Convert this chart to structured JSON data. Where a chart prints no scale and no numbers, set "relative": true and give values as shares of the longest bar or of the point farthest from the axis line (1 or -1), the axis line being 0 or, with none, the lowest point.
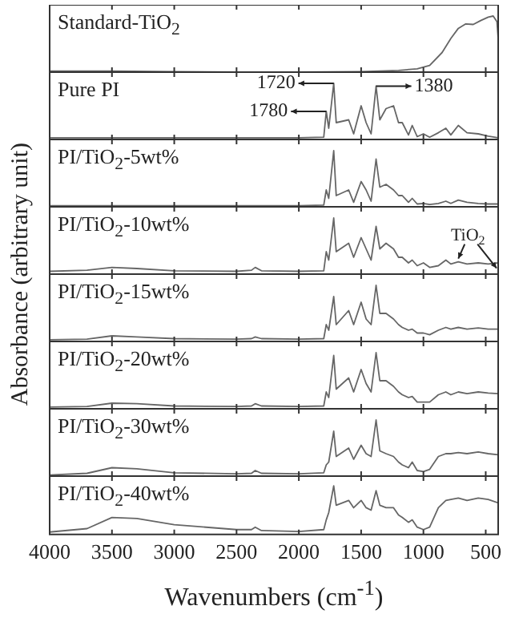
{
  "chart_data": [
    {
      "type": "line",
      "title": "Standard-TiO$_{2}$",
      "ylabel": "Absorbance (arbitrary unit)",
      "relative": true,
      "marker": "none",
      "grid": false,
      "legend": false,
      "tick_labels": false,
      "xlim": [
        4000,
        400
      ],
      "xticks": [
        4000,
        3500,
        3000,
        2500,
        2000,
        1500,
        1000,
        500
      ],
      "x": [
        4000,
        3500,
        3000,
        2500,
        2000,
        1500,
        1200,
        1050,
        950,
        850,
        780,
        720,
        660,
        600,
        540,
        480,
        440,
        410,
        400
      ],
      "series": [
        {
          "color": "#666666",
          "values": [
            0.02,
            0.02,
            0.01,
            0.0,
            0.0,
            0.01,
            0.03,
            0.06,
            0.12,
            0.35,
            0.6,
            0.78,
            0.86,
            0.85,
            0.92,
            0.98,
            1,
            0.9,
            0.6
          ]
        }
      ]
    },
    {
      "type": "line",
      "title": "Pure PI",
      "relative": true,
      "marker": "none",
      "grid": false,
      "legend": false,
      "tick_labels": false,
      "xlim": [
        4000,
        400
      ],
      "xticks": [
        4000,
        3500,
        3000,
        2500,
        2000,
        1500,
        1000,
        500
      ],
      "x": [
        4000,
        3700,
        3500,
        3300,
        3000,
        2500,
        2380,
        2350,
        2300,
        2000,
        1800,
        1780,
        1760,
        1720,
        1700,
        1600,
        1560,
        1500,
        1460,
        1420,
        1380,
        1350,
        1300,
        1240,
        1200,
        1170,
        1120,
        1090,
        1050,
        1000,
        950,
        880,
        820,
        780,
        720,
        650,
        560,
        480,
        400
      ],
      "series": [
        {
          "color": "#666666",
          "values": [
            0.03,
            0.03,
            0.03,
            0.03,
            0.03,
            0.03,
            0.03,
            0.03,
            0.03,
            0.03,
            0.04,
            0.5,
            0.2,
            1,
            0.3,
            0.35,
            0.1,
            0.6,
            0.3,
            0.1,
            0.95,
            0.35,
            0.55,
            0.6,
            0.3,
            0.3,
            0.08,
            0.25,
            0.05,
            0.1,
            0.04,
            0.12,
            0.2,
            0.08,
            0.25,
            0.12,
            0.1,
            0.06,
            0.03
          ]
        }
      ],
      "annotations": [
        {
          "text": "1720",
          "x": 1720,
          "y": 1
        },
        {
          "text": "1380",
          "x": 1380,
          "y": 0.95
        },
        {
          "text": "1780",
          "x": 1780,
          "y": 0.5
        }
      ]
    },
    {
      "type": "line",
      "title": "PI/TiO$_{2}$-5wt%",
      "relative": true,
      "marker": "none",
      "grid": false,
      "legend": false,
      "tick_labels": false,
      "xlim": [
        4000,
        400
      ],
      "xticks": [
        4000,
        3500,
        3000,
        2500,
        2000,
        1500,
        1000,
        500
      ],
      "x": [
        4000,
        3700,
        3500,
        3300,
        3000,
        2500,
        2380,
        2350,
        2300,
        2000,
        1800,
        1780,
        1760,
        1720,
        1700,
        1600,
        1560,
        1500,
        1460,
        1420,
        1380,
        1350,
        1300,
        1240,
        1200,
        1170,
        1120,
        1090,
        1050,
        1000,
        950,
        880,
        820,
        780,
        720,
        650,
        560,
        480,
        400
      ],
      "series": [
        {
          "color": "#666666",
          "values": [
            0.02,
            0.02,
            0.02,
            0.02,
            0.02,
            0.02,
            0.02,
            0.02,
            0.02,
            0.02,
            0.03,
            0.3,
            0.15,
            1,
            0.2,
            0.3,
            0.08,
            0.45,
            0.3,
            0.1,
            0.85,
            0.35,
            0.4,
            0.3,
            0.2,
            0.2,
            0.08,
            0.15,
            0.05,
            0.06,
            0.04,
            0.06,
            0.1,
            0.06,
            0.12,
            0.08,
            0.06,
            0.05,
            0.05
          ]
        }
      ]
    },
    {
      "type": "line",
      "title": "PI/TiO$_{2}$-10wt%",
      "relative": true,
      "marker": "none",
      "grid": false,
      "legend": false,
      "tick_labels": false,
      "xlim": [
        4000,
        400
      ],
      "xticks": [
        4000,
        3500,
        3000,
        2500,
        2000,
        1500,
        1000,
        500
      ],
      "x": [
        4000,
        3700,
        3500,
        3300,
        3000,
        2500,
        2380,
        2350,
        2300,
        2000,
        1800,
        1780,
        1760,
        1720,
        1700,
        1600,
        1560,
        1500,
        1460,
        1420,
        1380,
        1350,
        1300,
        1240,
        1200,
        1170,
        1120,
        1090,
        1050,
        1000,
        950,
        880,
        820,
        780,
        720,
        650,
        560,
        480,
        400
      ],
      "series": [
        {
          "color": "#666666",
          "values": [
            0.05,
            0.07,
            0.12,
            0.1,
            0.06,
            0.05,
            0.07,
            0.12,
            0.06,
            0.05,
            0.06,
            0.4,
            0.25,
            1,
            0.4,
            0.55,
            0.3,
            0.65,
            0.45,
            0.25,
            0.85,
            0.45,
            0.55,
            0.45,
            0.3,
            0.3,
            0.2,
            0.25,
            0.15,
            0.2,
            0.12,
            0.15,
            0.25,
            0.18,
            0.22,
            0.18,
            0.2,
            0.18,
            0.2
          ]
        }
      ],
      "annotations": [
        {
          "text": "TiO$_{2}$",
          "x": 720,
          "y": 0.22
        }
      ]
    },
    {
      "type": "line",
      "title": "PI/TiO$_{2}$-15wt%",
      "relative": true,
      "marker": "none",
      "grid": false,
      "legend": false,
      "tick_labels": false,
      "xlim": [
        4000,
        400
      ],
      "xticks": [
        4000,
        3500,
        3000,
        2500,
        2000,
        1500,
        1000,
        500
      ],
      "x": [
        4000,
        3700,
        3500,
        3300,
        3000,
        2500,
        2380,
        2350,
        2300,
        2000,
        1800,
        1780,
        1760,
        1720,
        1700,
        1600,
        1560,
        1500,
        1460,
        1420,
        1380,
        1350,
        1300,
        1240,
        1200,
        1170,
        1120,
        1090,
        1050,
        1000,
        950,
        880,
        820,
        780,
        720,
        650,
        560,
        480,
        400
      ],
      "series": [
        {
          "color": "#666666",
          "values": [
            0.03,
            0.04,
            0.1,
            0.08,
            0.05,
            0.04,
            0.05,
            0.08,
            0.05,
            0.04,
            0.05,
            0.3,
            0.2,
            0.8,
            0.3,
            0.55,
            0.3,
            0.7,
            0.4,
            0.3,
            1,
            0.5,
            0.5,
            0.4,
            0.3,
            0.25,
            0.2,
            0.22,
            0.15,
            0.15,
            0.12,
            0.2,
            0.25,
            0.22,
            0.25,
            0.22,
            0.24,
            0.22,
            0.22
          ]
        }
      ]
    },
    {
      "type": "line",
      "title": "PI/TiO$_{2}$-20wt%",
      "relative": true,
      "marker": "none",
      "grid": false,
      "legend": false,
      "tick_labels": false,
      "xlim": [
        4000,
        400
      ],
      "xticks": [
        4000,
        3500,
        3000,
        2500,
        2000,
        1500,
        1000,
        500
      ],
      "x": [
        4000,
        3700,
        3500,
        3300,
        3000,
        2500,
        2380,
        2350,
        2300,
        2000,
        1800,
        1780,
        1760,
        1720,
        1700,
        1600,
        1560,
        1500,
        1460,
        1420,
        1380,
        1350,
        1300,
        1240,
        1200,
        1170,
        1120,
        1090,
        1050,
        1000,
        950,
        880,
        820,
        780,
        720,
        650,
        560,
        480,
        400
      ],
      "series": [
        {
          "color": "#666666",
          "values": [
            0.03,
            0.04,
            0.1,
            0.09,
            0.05,
            0.04,
            0.05,
            0.09,
            0.05,
            0.04,
            0.05,
            0.3,
            0.2,
            0.95,
            0.35,
            0.55,
            0.3,
            0.7,
            0.45,
            0.3,
            1,
            0.5,
            0.5,
            0.4,
            0.3,
            0.25,
            0.2,
            0.22,
            0.12,
            0.12,
            0.12,
            0.25,
            0.3,
            0.25,
            0.3,
            0.27,
            0.3,
            0.28,
            0.27
          ]
        }
      ]
    },
    {
      "type": "line",
      "title": "PI/TiO$_{2}$-30wt%",
      "relative": true,
      "marker": "none",
      "grid": false,
      "legend": false,
      "tick_labels": false,
      "xlim": [
        4000,
        400
      ],
      "xticks": [
        4000,
        3500,
        3000,
        2500,
        2000,
        1500,
        1000,
        500
      ],
      "x": [
        4000,
        3700,
        3500,
        3300,
        3000,
        2500,
        2380,
        2350,
        2300,
        2000,
        1800,
        1780,
        1760,
        1720,
        1700,
        1600,
        1560,
        1500,
        1460,
        1420,
        1380,
        1350,
        1300,
        1240,
        1200,
        1170,
        1120,
        1090,
        1050,
        1000,
        950,
        880,
        820,
        780,
        720,
        650,
        560,
        480,
        400
      ],
      "series": [
        {
          "color": "#666666",
          "values": [
            0.02,
            0.05,
            0.15,
            0.13,
            0.06,
            0.04,
            0.05,
            0.1,
            0.05,
            0.04,
            0.06,
            0.2,
            0.25,
            0.8,
            0.35,
            0.5,
            0.3,
            0.55,
            0.4,
            0.35,
            1,
            0.45,
            0.4,
            0.35,
            0.25,
            0.2,
            0.15,
            0.25,
            0.1,
            0.08,
            0.12,
            0.35,
            0.4,
            0.4,
            0.42,
            0.4,
            0.43,
            0.4,
            0.38
          ]
        }
      ]
    },
    {
      "type": "line",
      "title": "PI/TiO$_{2}$-40wt%",
      "xlabel": "Wavenumbers (cm$^{-1}$)",
      "relative": true,
      "marker": "none",
      "grid": false,
      "legend": false,
      "tick_labels": "x",
      "xlim": [
        4000,
        400
      ],
      "xticks": [
        4000,
        3500,
        3000,
        2500,
        2000,
        1500,
        1000,
        500
      ],
      "x": [
        4000,
        3700,
        3500,
        3300,
        3000,
        2500,
        2380,
        2350,
        2300,
        2000,
        1800,
        1780,
        1760,
        1720,
        1700,
        1600,
        1560,
        1500,
        1460,
        1420,
        1380,
        1350,
        1300,
        1240,
        1200,
        1170,
        1120,
        1090,
        1050,
        1000,
        950,
        880,
        820,
        780,
        720,
        650,
        560,
        480,
        400
      ],
      "series": [
        {
          "color": "#666666",
          "values": [
            0.05,
            0.12,
            0.35,
            0.33,
            0.2,
            0.1,
            0.1,
            0.15,
            0.08,
            0.06,
            0.1,
            0.3,
            0.45,
            1,
            0.6,
            0.7,
            0.55,
            0.7,
            0.55,
            0.5,
            0.9,
            0.6,
            0.55,
            0.55,
            0.4,
            0.35,
            0.25,
            0.3,
            0.15,
            0.1,
            0.15,
            0.55,
            0.7,
            0.72,
            0.75,
            0.7,
            0.75,
            0.72,
            0.65
          ]
        }
      ]
    }
  ]
}
